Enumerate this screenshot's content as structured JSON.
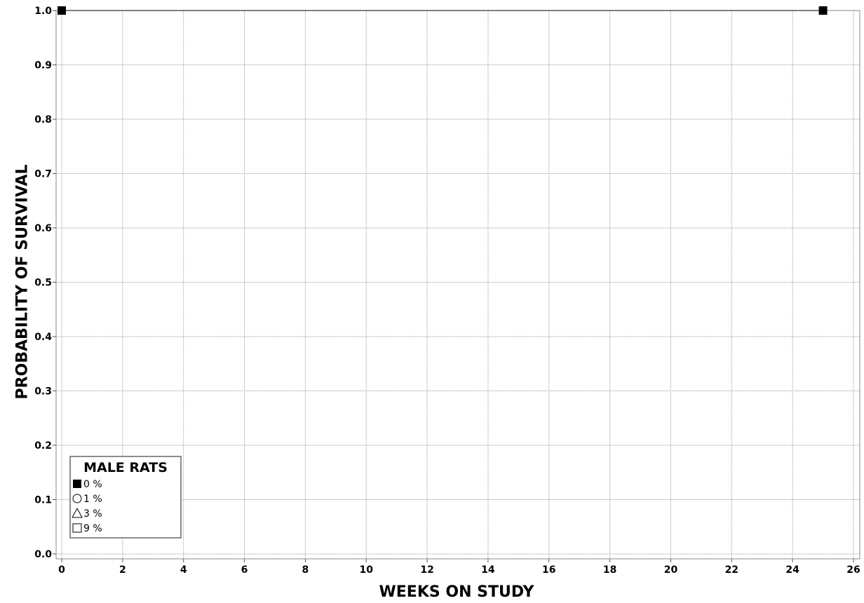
{
  "chart_data": {
    "type": "line",
    "title": "",
    "xlabel": "WEEKS ON STUDY",
    "ylabel": "PROBABILITY OF SURVIVAL",
    "xlim": [
      0,
      26
    ],
    "ylim": [
      0.0,
      1.0
    ],
    "x_ticks": [
      "0",
      "2",
      "4",
      "6",
      "8",
      "10",
      "12",
      "14",
      "16",
      "18",
      "20",
      "22",
      "24",
      "26"
    ],
    "y_ticks": [
      "0.0",
      "0.1",
      "0.2",
      "0.3",
      "0.4",
      "0.5",
      "0.6",
      "0.7",
      "0.8",
      "0.9",
      "1.0"
    ],
    "grid": true,
    "legend": {
      "title": "MALE RATS",
      "placement": "bottom-left",
      "entries": [
        {
          "label": "0 %",
          "marker": "filled-square"
        },
        {
          "label": "1 %",
          "marker": "open-circle"
        },
        {
          "label": "3 %",
          "marker": "open-triangle"
        },
        {
          "label": "9 %",
          "marker": "open-square"
        }
      ]
    },
    "series": [
      {
        "name": "0 %",
        "marker": "filled-square",
        "x": [
          0,
          25
        ],
        "y": [
          1.0,
          1.0
        ]
      }
    ]
  }
}
